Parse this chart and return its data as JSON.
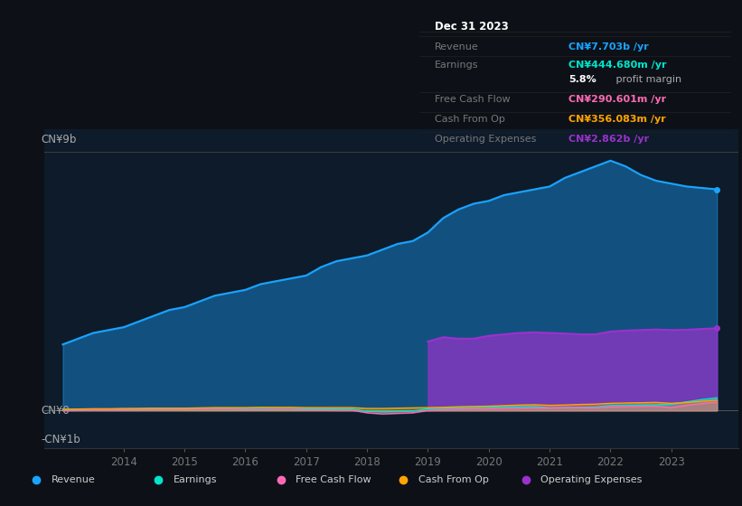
{
  "background_color": "#0d1117",
  "plot_bg_color": "#0d1b2a",
  "title": "Dec 31 2023",
  "ylabel_top": "CN¥9b",
  "ylabel_zero": "CN¥0",
  "ylabel_neg": "-CN¥1b",
  "years": [
    2013.0,
    2013.25,
    2013.5,
    2013.75,
    2014.0,
    2014.25,
    2014.5,
    2014.75,
    2015.0,
    2015.25,
    2015.5,
    2015.75,
    2016.0,
    2016.25,
    2016.5,
    2016.75,
    2017.0,
    2017.25,
    2017.5,
    2017.75,
    2018.0,
    2018.25,
    2018.5,
    2018.75,
    2019.0,
    2019.25,
    2019.5,
    2019.75,
    2020.0,
    2020.25,
    2020.5,
    2020.75,
    2021.0,
    2021.25,
    2021.5,
    2021.75,
    2022.0,
    2022.25,
    2022.5,
    2022.75,
    2023.0,
    2023.25,
    2023.5,
    2023.75
  ],
  "revenue": [
    2.3,
    2.5,
    2.7,
    2.8,
    2.9,
    3.1,
    3.3,
    3.5,
    3.6,
    3.8,
    4.0,
    4.1,
    4.2,
    4.4,
    4.5,
    4.6,
    4.7,
    5.0,
    5.2,
    5.3,
    5.4,
    5.6,
    5.8,
    5.9,
    6.2,
    6.7,
    7.0,
    7.2,
    7.3,
    7.5,
    7.6,
    7.7,
    7.8,
    8.1,
    8.3,
    8.5,
    8.7,
    8.5,
    8.2,
    8.0,
    7.9,
    7.8,
    7.75,
    7.7
  ],
  "earnings": [
    0.04,
    0.04,
    0.05,
    0.05,
    0.05,
    0.06,
    0.07,
    0.07,
    0.07,
    0.08,
    0.08,
    0.08,
    0.07,
    0.07,
    0.06,
    0.06,
    0.06,
    0.06,
    0.05,
    0.05,
    -0.03,
    -0.05,
    -0.04,
    -0.02,
    0.06,
    0.08,
    0.09,
    0.1,
    0.11,
    0.12,
    0.13,
    0.14,
    0.09,
    0.1,
    0.11,
    0.12,
    0.17,
    0.18,
    0.19,
    0.2,
    0.22,
    0.3,
    0.38,
    0.44
  ],
  "free_cash_flow": [
    0.0,
    0.01,
    0.02,
    0.02,
    0.02,
    0.03,
    0.03,
    0.03,
    0.03,
    0.04,
    0.04,
    0.04,
    0.03,
    0.03,
    0.04,
    0.04,
    0.02,
    0.02,
    0.01,
    0.01,
    -0.08,
    -0.12,
    -0.1,
    -0.08,
    0.0,
    0.03,
    0.05,
    0.06,
    0.06,
    0.07,
    0.08,
    0.09,
    0.09,
    0.1,
    0.1,
    0.09,
    0.12,
    0.13,
    0.14,
    0.15,
    0.1,
    0.18,
    0.24,
    0.29
  ],
  "cash_from_op": [
    0.04,
    0.05,
    0.06,
    0.06,
    0.07,
    0.07,
    0.08,
    0.08,
    0.08,
    0.09,
    0.1,
    0.1,
    0.1,
    0.11,
    0.11,
    0.11,
    0.1,
    0.1,
    0.1,
    0.1,
    0.07,
    0.07,
    0.08,
    0.09,
    0.1,
    0.11,
    0.13,
    0.14,
    0.15,
    0.17,
    0.19,
    0.2,
    0.18,
    0.19,
    0.21,
    0.22,
    0.25,
    0.26,
    0.27,
    0.28,
    0.25,
    0.28,
    0.32,
    0.36
  ],
  "operating_expenses": [
    0.0,
    0.0,
    0.0,
    0.0,
    0.0,
    0.0,
    0.0,
    0.0,
    0.0,
    0.0,
    0.0,
    0.0,
    0.0,
    0.0,
    0.0,
    0.0,
    0.0,
    0.0,
    0.0,
    0.0,
    0.0,
    0.0,
    0.0,
    0.0,
    2.4,
    2.55,
    2.5,
    2.5,
    2.6,
    2.65,
    2.7,
    2.72,
    2.7,
    2.68,
    2.65,
    2.65,
    2.75,
    2.78,
    2.8,
    2.82,
    2.8,
    2.81,
    2.84,
    2.86
  ],
  "revenue_color": "#1aa3ff",
  "earnings_color": "#00e5cc",
  "free_cash_flow_color": "#ff69b4",
  "cash_from_op_color": "#ffa500",
  "operating_expenses_color": "#9932cc",
  "xlim": [
    2012.7,
    2024.1
  ],
  "ylim": [
    -1.3,
    9.8
  ],
  "y_zero": 0,
  "y_top": 9,
  "y_neg": -1,
  "xticks": [
    2014,
    2015,
    2016,
    2017,
    2018,
    2019,
    2020,
    2021,
    2022,
    2023
  ],
  "legend_labels": [
    "Revenue",
    "Earnings",
    "Free Cash Flow",
    "Cash From Op",
    "Operating Expenses"
  ],
  "legend_colors": [
    "#1aa3ff",
    "#00e5cc",
    "#ff69b4",
    "#ffa500",
    "#9932cc"
  ],
  "info_rows": [
    {
      "label": "Revenue",
      "value": "CN¥7.703b /yr",
      "vcolor": "#1aa3ff"
    },
    {
      "label": "Earnings",
      "value": "CN¥444.680m /yr",
      "vcolor": "#00e5cc"
    },
    {
      "label": "",
      "value": "",
      "vcolor": "#ffffff"
    },
    {
      "label": "Free Cash Flow",
      "value": "CN¥290.601m /yr",
      "vcolor": "#ff69b4"
    },
    {
      "label": "Cash From Op",
      "value": "CN¥356.083m /yr",
      "vcolor": "#ffa500"
    },
    {
      "label": "Operating Expenses",
      "value": "CN¥2.862b /yr",
      "vcolor": "#9932cc"
    }
  ]
}
